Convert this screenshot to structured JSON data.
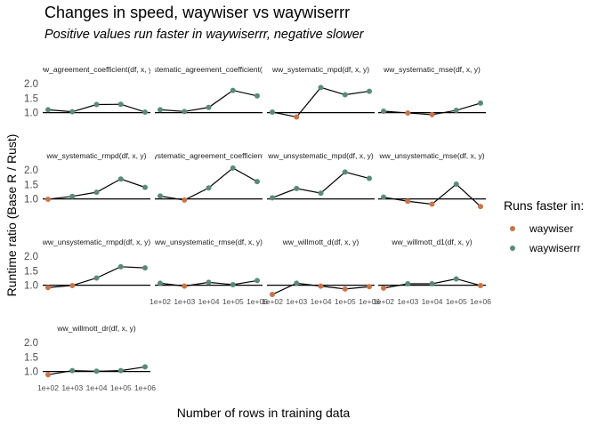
{
  "chart_data": {
    "type": "line",
    "title": "Changes in speed, waywiser vs waywiserrr",
    "subtitle": "Positive values run faster in waywiserrr, negative slower",
    "xlabel": "Number of rows in training data",
    "ylabel": "Runtime ratio (Base R / Rust)",
    "x_categories": [
      "1e+02",
      "1e+03",
      "1e+04",
      "1e+05",
      "1e+06"
    ],
    "y_ticks": [
      "1.0",
      "1.5",
      "2.0"
    ],
    "ylim": [
      0.65,
      2.25
    ],
    "reference_line": 1.0,
    "log_x": true,
    "grid": false,
    "legend": {
      "title": "Runs faster in:",
      "position": "right",
      "items": [
        {
          "label": "waywiser",
          "color": "#C8754A"
        },
        {
          "label": "waywiserrr",
          "color": "#5B8A78"
        }
      ]
    },
    "panels": [
      {
        "label": "ww_agreement_coefficient(df, x, y)",
        "values": [
          1.1,
          1.03,
          1.28,
          1.29,
          1.02
        ]
      },
      {
        "label": "ww_systematic_agreement_coefficient(df, x, y)",
        "values": [
          1.1,
          1.04,
          1.18,
          1.77,
          1.58
        ]
      },
      {
        "label": "ww_systematic_mpd(df, x, y)",
        "values": [
          1.02,
          0.85,
          1.87,
          1.62,
          1.74
        ]
      },
      {
        "label": "ww_systematic_mse(df, x, y)",
        "values": [
          1.05,
          0.99,
          0.93,
          1.08,
          1.33
        ]
      },
      {
        "label": "ww_systematic_rmpd(df, x, y)",
        "values": [
          0.99,
          1.09,
          1.23,
          1.69,
          1.4
        ]
      },
      {
        "label": "ww_unsystematic_agreement_coefficient(df, x, y)",
        "values": [
          1.1,
          0.96,
          1.38,
          2.07,
          1.6
        ]
      },
      {
        "label": "ww_unsystematic_mpd(df, x, y)",
        "values": [
          1.04,
          1.36,
          1.2,
          1.93,
          1.71
        ]
      },
      {
        "label": "ww_unsystematic_mse(df, x, y)",
        "values": [
          1.06,
          0.92,
          0.82,
          1.51,
          0.74
        ]
      },
      {
        "label": "ww_unsystematic_rmpd(df, x, y)",
        "values": [
          0.92,
          0.99,
          1.25,
          1.64,
          1.6
        ]
      },
      {
        "label": "ww_unsystematic_rmse(df, x, y)",
        "values": [
          1.07,
          0.97,
          1.1,
          1.02,
          1.16
        ]
      },
      {
        "label": "ww_willmott_d(df, x, y)",
        "values": [
          0.68,
          1.07,
          0.97,
          0.87,
          0.95
        ]
      },
      {
        "label": "ww_willmott_d1(df, x, y)",
        "values": [
          0.9,
          1.05,
          1.05,
          1.22,
          0.99
        ]
      },
      {
        "label": "ww_willmott_dr(df, x, y)",
        "values": [
          0.89,
          1.03,
          1.01,
          1.03,
          1.16
        ]
      }
    ]
  }
}
